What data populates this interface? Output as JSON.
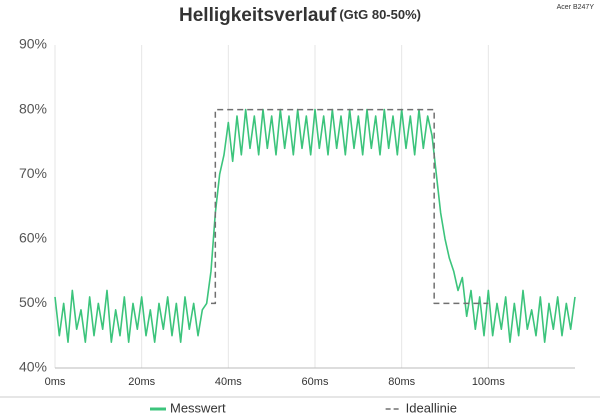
{
  "chart_data": {
    "type": "line",
    "title": "Helligkeitsverlauf",
    "subtitle": "(GtG 80-50%)",
    "annotation": "Acer B247Y",
    "xlim": [
      0,
      120
    ],
    "xticks": [
      {
        "value": 0,
        "label": "0ms"
      },
      {
        "value": 20,
        "label": "20ms"
      },
      {
        "value": 40,
        "label": "40ms"
      },
      {
        "value": 60,
        "label": "60ms"
      },
      {
        "value": 80,
        "label": "80ms"
      },
      {
        "value": 100,
        "label": "100ms"
      }
    ],
    "ylim": [
      40,
      90
    ],
    "yticks": [
      {
        "value": 40,
        "label": "40%"
      },
      {
        "value": 50,
        "label": "50%"
      },
      {
        "value": 60,
        "label": "60%"
      },
      {
        "value": 70,
        "label": "70%"
      },
      {
        "value": 80,
        "label": "80%"
      },
      {
        "value": 90,
        "label": "90%"
      }
    ],
    "grid": "x",
    "legend": "bottom",
    "series": [
      {
        "name": "Messwert",
        "color": "#3cc47c",
        "dash": false,
        "x": [
          0,
          1,
          2,
          3,
          4,
          5,
          6,
          7,
          8,
          9,
          10,
          11,
          12,
          13,
          14,
          15,
          16,
          17,
          18,
          19,
          20,
          21,
          22,
          23,
          24,
          25,
          26,
          27,
          28,
          29,
          30,
          31,
          32,
          33,
          34,
          35,
          36,
          37,
          38,
          39,
          40,
          41,
          42,
          43,
          44,
          45,
          46,
          47,
          48,
          49,
          50,
          51,
          52,
          53,
          54,
          55,
          56,
          57,
          58,
          59,
          60,
          61,
          62,
          63,
          64,
          65,
          66,
          67,
          68,
          69,
          70,
          71,
          72,
          73,
          74,
          75,
          76,
          77,
          78,
          79,
          80,
          81,
          82,
          83,
          84,
          85,
          86,
          87,
          88,
          89,
          90,
          91,
          92,
          93,
          94,
          95,
          96,
          97,
          98,
          99,
          100,
          101,
          102,
          103,
          104,
          105,
          106,
          107,
          108,
          109,
          110,
          111,
          112,
          113,
          114,
          115,
          116,
          117,
          118,
          119,
          120
        ],
        "values": [
          51,
          45,
          50,
          44,
          52,
          46,
          49,
          44,
          51,
          45,
          50,
          46,
          52,
          44,
          49,
          45,
          51,
          44,
          50,
          46,
          51,
          45,
          49,
          44,
          50,
          46,
          51,
          45,
          50,
          44,
          51,
          46,
          50,
          45,
          49,
          50,
          55,
          64,
          70,
          73,
          78,
          72,
          79,
          73,
          80,
          74,
          79,
          73,
          80,
          74,
          79,
          73,
          80,
          74,
          79,
          73,
          80,
          74,
          79,
          73,
          80,
          74,
          79,
          73,
          80,
          74,
          79,
          73,
          80,
          74,
          79,
          73,
          80,
          74,
          79,
          73,
          80,
          74,
          79,
          73,
          80,
          74,
          79,
          73,
          80,
          74,
          79,
          76,
          70,
          64,
          60,
          57,
          55,
          52,
          54,
          48,
          52,
          46,
          51,
          45,
          52,
          45,
          50,
          46,
          51,
          44,
          50,
          45,
          52,
          46,
          49,
          45,
          51,
          44,
          50,
          46,
          51,
          45,
          50,
          46,
          51
        ]
      },
      {
        "name": "Ideallinie",
        "color": "#707070",
        "dash": true,
        "x": [
          36,
          37,
          37,
          87.5,
          87.5,
          100
        ],
        "values": [
          50,
          50,
          80,
          80,
          50,
          50
        ]
      }
    ]
  }
}
